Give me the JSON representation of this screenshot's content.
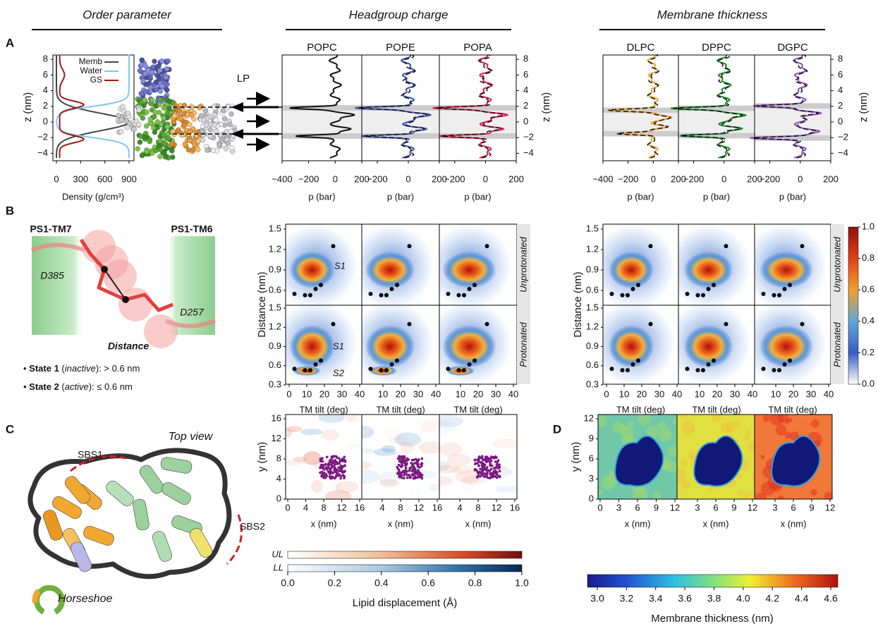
{
  "headers": [
    "Order parameter",
    "Headgroup charge",
    "Membrane thickness"
  ],
  "panel_labels": [
    "A",
    "B",
    "C",
    "D"
  ],
  "a": {
    "density": {
      "legend": [
        "Memb",
        "Water",
        "GS"
      ],
      "ylabel": "z (nm)",
      "yticks": [
        "8",
        "6",
        "4",
        "2",
        "0",
        "−2",
        "−4"
      ],
      "xticks": [
        "0",
        "300",
        "600",
        "900"
      ],
      "xlabel": "Density (g/cm³)"
    },
    "lp": "LP",
    "headgroup": {
      "titles": [
        "POPC",
        "POPE",
        "POPA"
      ],
      "xticks": [
        [
          "−400",
          "−200",
          "0",
          "200"
        ],
        [
          "−200",
          "0",
          "200"
        ],
        [
          "−200",
          "0",
          "200"
        ]
      ],
      "xlabels": [
        "p (bar)",
        "p (bar)",
        "p (bar)"
      ],
      "yticks": [
        "8",
        "6",
        "4",
        "2",
        "0",
        "−2",
        "−4"
      ],
      "ylabel": "z (nm)"
    },
    "thickness": {
      "titles": [
        "DLPC",
        "DPPC",
        "DGPC"
      ],
      "xticks": [
        [
          "−400",
          "−200",
          "0",
          "200"
        ],
        [
          "−200",
          "0",
          "200"
        ],
        [
          "−200",
          "0",
          "200"
        ]
      ],
      "xlabels": [
        "p (bar)",
        "p (bar)",
        "p (bar)"
      ],
      "yticks": [
        "8",
        "6",
        "4",
        "2",
        "0",
        "−2",
        "−4"
      ],
      "ylabel": "z (nm)"
    }
  },
  "b": {
    "tm7": "PS1-TM7",
    "tm6": "PS1-TM6",
    "d385": "D385",
    "d257": "D257",
    "distance": "Distance",
    "states": [
      [
        "• ",
        "State 1",
        " (",
        "inactive",
        "): > 0.6 nm"
      ],
      [
        "• ",
        "State 2",
        " (",
        "active",
        "): ≤ 0.6 nm"
      ]
    ],
    "heatmaps": [
      {
        "ylabel": "Distance (nm)",
        "yticks": [
          [
            "1.5",
            "1.2",
            "0.9",
            "0.6"
          ],
          [
            "1.5",
            "1.2",
            "0.9",
            "0.6",
            "0.3"
          ]
        ],
        "xticks": [
          [
            "0",
            "10",
            "20",
            "30",
            "40"
          ],
          [
            "10",
            "20",
            "30",
            "40"
          ],
          [
            "10",
            "20",
            "30",
            "40"
          ]
        ],
        "xlabels": [
          "TM tilt (deg)",
          "TM tilt (deg)",
          "TM tilt (deg)"
        ],
        "strips": [
          "Unprotonated",
          "Protonated"
        ],
        "annotations": [
          "S1",
          "S1",
          "S2"
        ]
      },
      {
        "ylabel": "Distance (nm)",
        "yticks": [
          [
            "1.5",
            "1.2",
            "0.9",
            "0.6"
          ],
          [
            "1.5",
            "1.2",
            "0.9",
            "0.6",
            "0.3"
          ]
        ],
        "xticks": [
          [
            "0",
            "10",
            "20",
            "30",
            "40"
          ],
          [
            "10",
            "20",
            "30",
            "40"
          ],
          [
            "10",
            "20",
            "30",
            "40"
          ]
        ],
        "xlabels": [
          "TM tilt (deg)",
          "TM tilt (deg)",
          "TM tilt (deg)"
        ],
        "strips": [
          "Unprotonated",
          "Protonated"
        ]
      }
    ],
    "colorbar": {
      "ticks": [
        "1.0",
        "0.8",
        "0.6",
        "0.4",
        "0.2",
        "0.0"
      ]
    }
  },
  "c": {
    "top_view": "Top view",
    "sbs1": "SBS1",
    "sbs2": "SBS2",
    "horseshoe": "Horseshoe",
    "maps": {
      "ylabel": "y (nm)",
      "yticks": [
        "16",
        "12",
        "8",
        "4",
        "0"
      ],
      "xticks": [
        [
          "0",
          "4",
          "8",
          "12",
          "16"
        ],
        [
          "4",
          "8",
          "12",
          "16"
        ],
        [
          "4",
          "8",
          "12",
          "16"
        ]
      ],
      "xlabels": [
        "x (nm)",
        "x (nm)",
        "x (nm)"
      ]
    },
    "colorbar": {
      "rows": [
        "UL",
        "LL"
      ],
      "ticks": [
        "0.0",
        "0.2",
        "0.4",
        "0.6",
        "0.8",
        "1.0"
      ],
      "label": "Lipid displacement (Å)"
    }
  },
  "d": {
    "maps": {
      "ylabel": "y (nm)",
      "yticks": [
        "12",
        "9",
        "6",
        "3",
        "0"
      ],
      "xticks": [
        [
          "0",
          "3",
          "6",
          "9",
          "12"
        ],
        [
          "3",
          "6",
          "9",
          "12"
        ],
        [
          "3",
          "6",
          "9",
          "12"
        ]
      ],
      "xlabels": [
        "x (nm)",
        "x (nm)",
        "x (nm)"
      ]
    },
    "colorbar": {
      "ticks": [
        "3.0",
        "3.2",
        "3.4",
        "3.6",
        "3.8",
        "4.0",
        "4.2",
        "4.4",
        "4.6"
      ],
      "label": "Membrane thickness (nm)"
    }
  }
}
